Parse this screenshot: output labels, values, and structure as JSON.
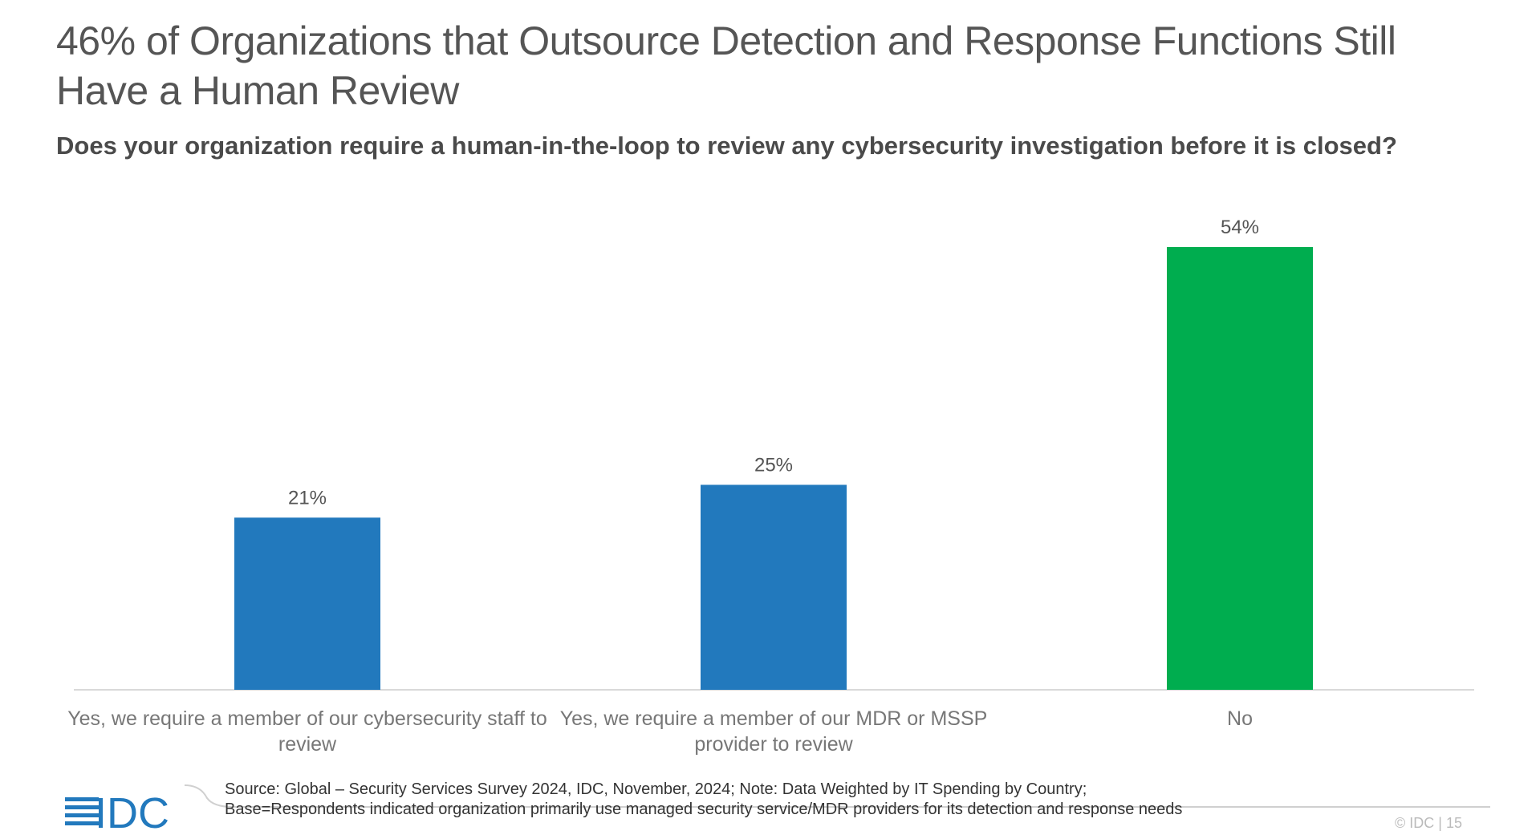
{
  "chart_data": {
    "type": "bar",
    "title": "46% of Organizations that Outsource Detection and Response Functions Still Have a Human Review",
    "subtitle": "Does your organization require a human-in-the-loop to review any cybersecurity investigation before it is closed?",
    "categories": [
      "Yes, we require a member of our cybersecurity staff to review",
      "Yes, we require a member of our MDR or MSSP provider to review",
      "No"
    ],
    "values": [
      21,
      25,
      54
    ],
    "data_labels": [
      "21%",
      "25%",
      "54%"
    ],
    "colors": [
      "#2279bd",
      "#2279bd",
      "#00ad4f"
    ],
    "xlabel": "",
    "ylabel": "",
    "ylim": [
      0,
      54
    ],
    "grid": false
  },
  "footer": {
    "source_line1": "Source: Global – Security Services Survey 2024, IDC, November, 2024; Note: Data Weighted by IT Spending by Country;",
    "source_line2": "Base=Respondents indicated organization primarily use managed security service/MDR providers for its detection and response needs",
    "logo": "IDC",
    "copyright": "© IDC |  15"
  }
}
